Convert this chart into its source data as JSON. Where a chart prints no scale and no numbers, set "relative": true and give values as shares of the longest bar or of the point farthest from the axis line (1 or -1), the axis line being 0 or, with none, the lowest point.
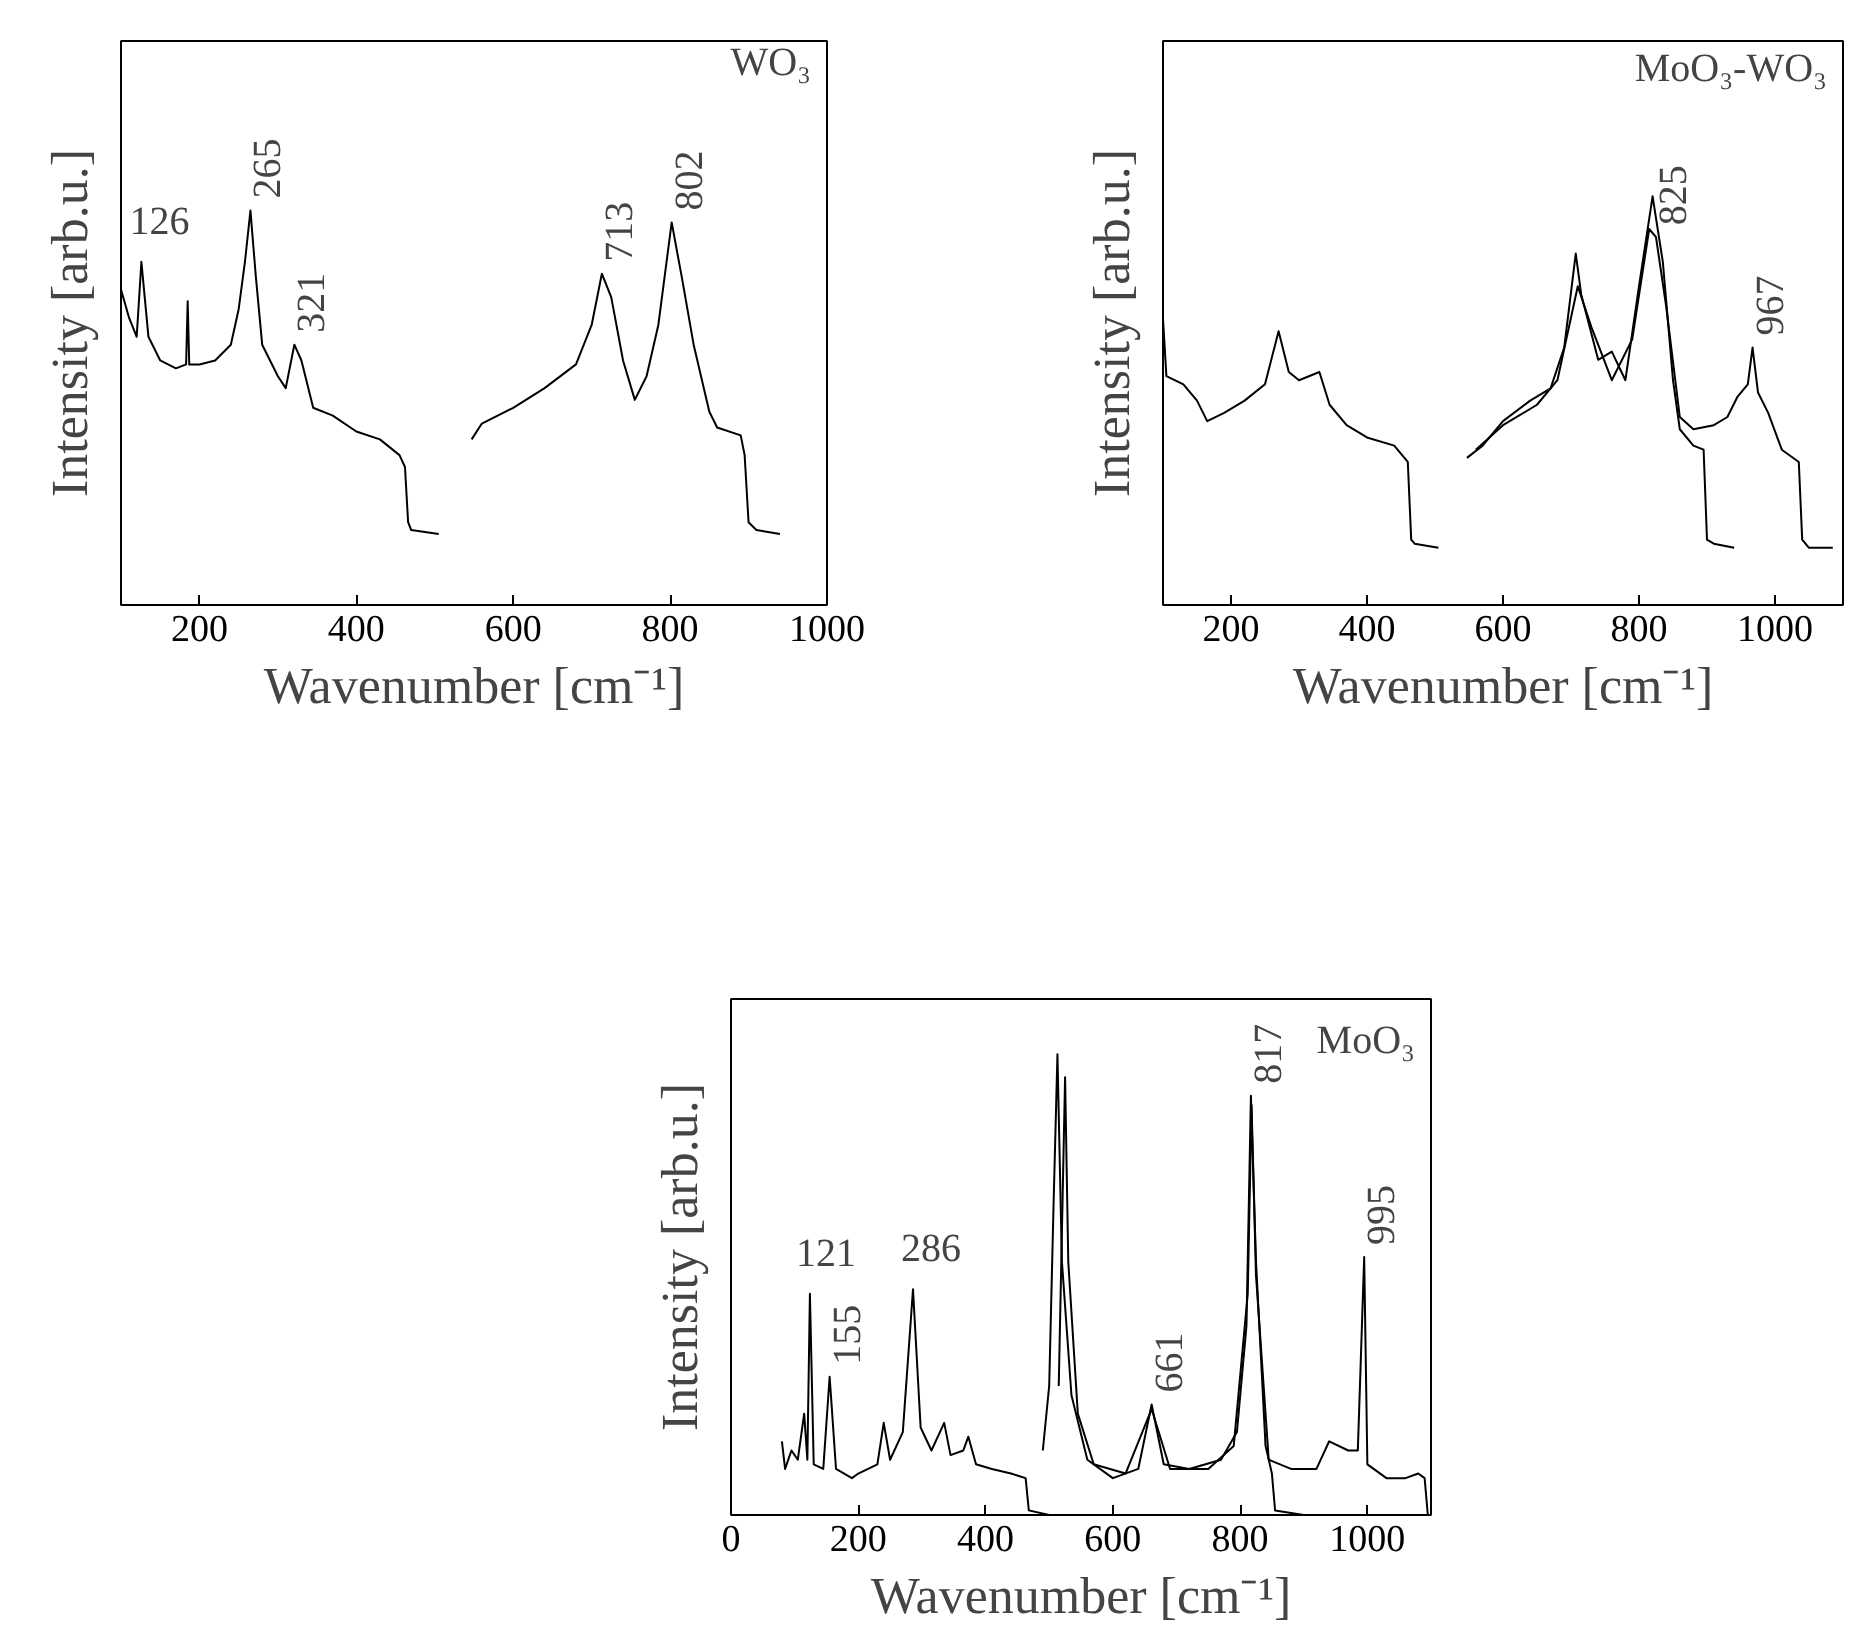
{
  "chart_data": [
    {
      "type": "line",
      "title": "WO₃",
      "xlabel": "Wavenumber [cm⁻¹]",
      "ylabel": "Intensity [arb.u.]",
      "relative": true,
      "xlim": [
        100,
        1000
      ],
      "xticks": [
        200,
        400,
        600,
        800,
        1000
      ],
      "tick_labels": "x",
      "grid": false,
      "line_style": "solid",
      "marker": "none",
      "series": [
        {
          "color": "#000000",
          "x": [
            100,
            110,
            120,
            126,
            135,
            150,
            170,
            183,
            185,
            187,
            200,
            220,
            240,
            250,
            258,
            265,
            272,
            280,
            300,
            310,
            321,
            330,
            345,
            370,
            400,
            430,
            455,
            462,
            466,
            470,
            505,
            525,
            547,
            560,
            600,
            640,
            680,
            700,
            713,
            725,
            740,
            755,
            770,
            785,
            802,
            815,
            830,
            850,
            860,
            890,
            895,
            900,
            910,
            940
          ],
          "values": [
            0.8,
            0.73,
            0.68,
            0.87,
            0.68,
            0.62,
            0.6,
            0.61,
            0.77,
            0.61,
            0.61,
            0.62,
            0.66,
            0.75,
            0.87,
            1.0,
            0.83,
            0.66,
            0.58,
            0.55,
            0.66,
            0.62,
            0.5,
            0.48,
            0.44,
            0.42,
            0.38,
            0.35,
            0.21,
            0.19,
            0.18,
            null,
            0.42,
            0.46,
            0.5,
            0.55,
            0.61,
            0.71,
            0.84,
            0.78,
            0.62,
            0.52,
            0.58,
            0.71,
            0.97,
            0.83,
            0.66,
            0.49,
            0.45,
            0.43,
            0.38,
            0.21,
            0.19,
            0.18
          ]
        }
      ],
      "annotations": [
        {
          "text": "126",
          "x": 126,
          "y": 0.87
        },
        {
          "text": "265",
          "x": 265,
          "y": 1.0
        },
        {
          "text": "321",
          "x": 321,
          "y": 0.66
        },
        {
          "text": "713",
          "x": 713,
          "y": 0.84
        },
        {
          "text": "802",
          "x": 802,
          "y": 0.97
        }
      ]
    },
    {
      "type": "line",
      "title": "MoO₃-WO₃",
      "xlabel": "Wavenumber [cm⁻¹]",
      "ylabel": "Intensity [arb.u.]",
      "relative": true,
      "xlim": [
        100,
        1100
      ],
      "xticks": [
        200,
        400,
        600,
        800,
        1000
      ],
      "tick_labels": "x",
      "grid": false,
      "line_style": "solid",
      "marker": "none",
      "series": [
        {
          "color": "#000000",
          "x": [
            100,
            105,
            130,
            150,
            165,
            190,
            220,
            250,
            270,
            285,
            300,
            330,
            345,
            370,
            400,
            440,
            460,
            465,
            470,
            505,
            525,
            547,
            570,
            600,
            640,
            670,
            690,
            707,
            715,
            740,
            760,
            780,
            800,
            820,
            835,
            850,
            860,
            880,
            895,
            900,
            910,
            940
          ],
          "values": [
            0.7,
            0.56,
            0.54,
            0.5,
            0.45,
            0.47,
            0.5,
            0.54,
            0.67,
            0.57,
            0.55,
            0.57,
            0.49,
            0.44,
            0.41,
            0.39,
            0.35,
            0.16,
            0.15,
            0.14,
            null,
            0.36,
            0.39,
            0.45,
            0.5,
            0.53,
            0.63,
            0.86,
            0.76,
            0.6,
            0.62,
            0.55,
            0.78,
            1.0,
            0.84,
            0.55,
            0.43,
            0.39,
            0.38,
            0.16,
            0.15,
            0.14
          ]
        },
        {
          "color": "#000000",
          "x": [
            560,
            600,
            650,
            680,
            710,
            730,
            760,
            790,
            815,
            825,
            840,
            860,
            880,
            910,
            930,
            945,
            960,
            967,
            975,
            990,
            1010,
            1035,
            1040,
            1050,
            1085
          ],
          "values": [
            0.38,
            0.44,
            0.49,
            0.55,
            0.78,
            0.68,
            0.55,
            0.65,
            0.92,
            0.9,
            0.73,
            0.46,
            0.43,
            0.44,
            0.46,
            0.51,
            0.54,
            0.63,
            0.52,
            0.47,
            0.38,
            0.35,
            0.16,
            0.14,
            0.14
          ]
        }
      ],
      "annotations": [
        {
          "text": "825",
          "x": 825,
          "y": 0.9
        },
        {
          "text": "967",
          "x": 967,
          "y": 0.63
        }
      ]
    },
    {
      "type": "line",
      "title": "MoO₃",
      "xlabel": "Wavenumber [cm⁻¹]",
      "ylabel": "Intensity [arb.u.]",
      "relative": true,
      "xlim": [
        0,
        1100
      ],
      "xticks": [
        0,
        200,
        400,
        600,
        800,
        1000
      ],
      "tick_labels": "x",
      "grid": false,
      "line_style": "solid",
      "marker": "none",
      "series": [
        {
          "color": "#000000",
          "x": [
            80,
            85,
            95,
            105,
            115,
            120,
            124,
            130,
            145,
            155,
            165,
            190,
            200,
            230,
            240,
            250,
            270,
            286,
            298,
            315,
            335,
            345,
            365,
            373,
            385,
            410,
            440,
            463,
            468,
            500
          ],
          "values": [
            0.16,
            0.1,
            0.14,
            0.12,
            0.22,
            0.12,
            0.48,
            0.11,
            0.1,
            0.3,
            0.1,
            0.08,
            0.09,
            0.11,
            0.2,
            0.12,
            0.18,
            0.49,
            0.19,
            0.14,
            0.2,
            0.13,
            0.14,
            0.17,
            0.11,
            0.1,
            0.09,
            0.08,
            0.01,
            0.0
          ]
        },
        {
          "color": "#000000",
          "x": [
            490,
            500,
            507,
            513,
            520,
            535,
            560,
            600,
            640,
            661,
            680,
            720,
            770,
            795,
            810,
            817,
            825,
            840,
            850,
            855,
            900
          ],
          "values": [
            0.14,
            0.28,
            0.68,
            1.0,
            0.55,
            0.26,
            0.12,
            0.08,
            0.1,
            0.24,
            0.11,
            0.1,
            0.12,
            0.18,
            0.41,
            0.91,
            0.55,
            0.15,
            0.09,
            0.01,
            0.0
          ]
        },
        {
          "color": "#000000",
          "x": [
            515,
            525,
            530,
            545,
            570,
            620,
            661,
            690,
            750,
            790,
            812,
            818,
            825,
            845,
            880,
            920,
            940,
            970,
            985,
            995,
            1000,
            1030,
            1060,
            1080,
            1090,
            1095,
            1100
          ],
          "values": [
            0.28,
            0.95,
            0.55,
            0.22,
            0.11,
            0.09,
            0.23,
            0.1,
            0.1,
            0.15,
            0.48,
            0.89,
            0.52,
            0.12,
            0.1,
            0.1,
            0.16,
            0.14,
            0.14,
            0.56,
            0.11,
            0.08,
            0.08,
            0.09,
            0.08,
            0.0,
            0.0
          ]
        }
      ],
      "annotations": [
        {
          "text": "121",
          "x": 121,
          "y": 0.48
        },
        {
          "text": "155",
          "x": 155,
          "y": 0.3
        },
        {
          "text": "286",
          "x": 286,
          "y": 0.49
        },
        {
          "text": "661",
          "x": 661,
          "y": 0.24
        },
        {
          "text": "817",
          "x": 817,
          "y": 0.91
        },
        {
          "text": "995",
          "x": 995,
          "y": 0.56
        }
      ]
    }
  ]
}
